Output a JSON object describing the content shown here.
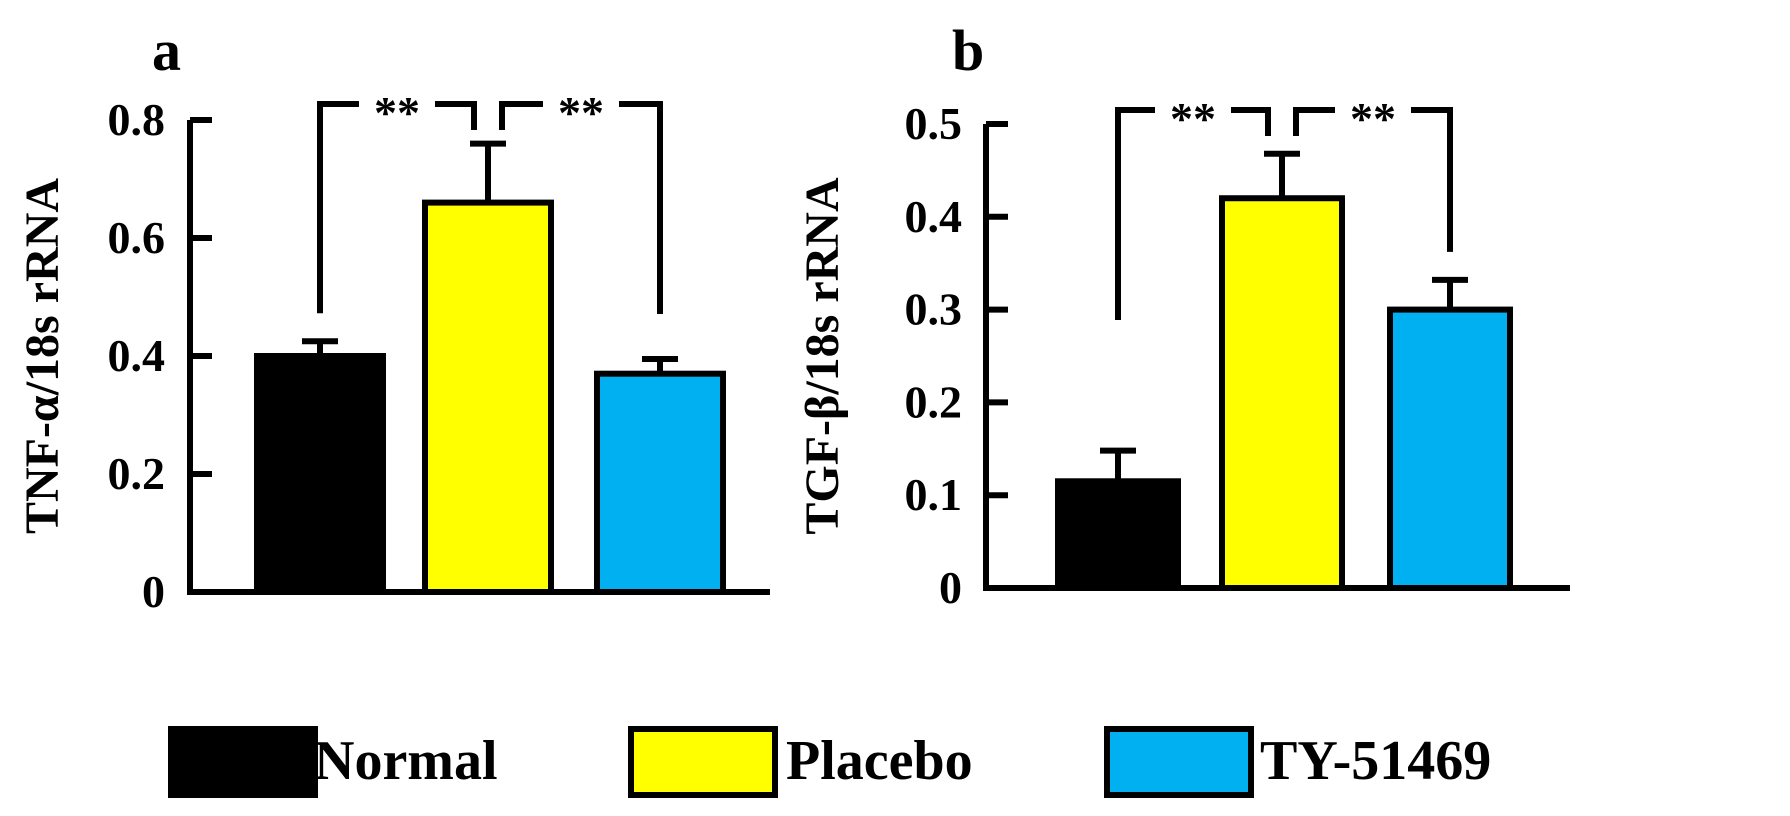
{
  "colors": {
    "normal": "#000000",
    "placebo": "#ffff00",
    "ty51469": "#00b0f0",
    "axis": "#000000"
  },
  "legend": {
    "items": [
      {
        "label": "Normal",
        "color": "#000000"
      },
      {
        "label": "Placebo",
        "color": "#ffff00"
      },
      {
        "label": "TY-51469",
        "color": "#00b0f0"
      }
    ]
  },
  "chart_data": [
    {
      "panel": "a",
      "type": "bar",
      "title": "",
      "xlabel": "",
      "ylabel": "TNF-α/18s rRNA",
      "ylim": [
        0,
        0.8
      ],
      "yticks": [
        "0",
        "0.2",
        "0.4",
        "0.6",
        "0.8"
      ],
      "ytick_values": [
        0,
        0.2,
        0.4,
        0.6,
        0.8
      ],
      "categories": [
        "Normal",
        "Placebo",
        "TY-51469"
      ],
      "values": [
        0.4,
        0.66,
        0.37
      ],
      "errors": [
        0.025,
        0.1,
        0.025
      ],
      "significance": [
        {
          "from": 0,
          "to": 1,
          "label": "**"
        },
        {
          "from": 1,
          "to": 2,
          "label": "**"
        }
      ]
    },
    {
      "panel": "b",
      "type": "bar",
      "title": "",
      "xlabel": "",
      "ylabel": "TGF-β/18s rRNA",
      "ylim": [
        0,
        0.5
      ],
      "yticks": [
        "0",
        "0.1",
        "0.2",
        "0.3",
        "0.4",
        "0.5"
      ],
      "ytick_values": [
        0,
        0.1,
        0.2,
        0.3,
        0.4,
        0.5
      ],
      "categories": [
        "Normal",
        "Placebo",
        "TY-51469"
      ],
      "values": [
        0.115,
        0.42,
        0.3
      ],
      "errors": [
        0.033,
        0.048,
        0.032
      ],
      "significance": [
        {
          "from": 0,
          "to": 1,
          "label": "**"
        },
        {
          "from": 1,
          "to": 2,
          "label": "**"
        }
      ]
    }
  ]
}
